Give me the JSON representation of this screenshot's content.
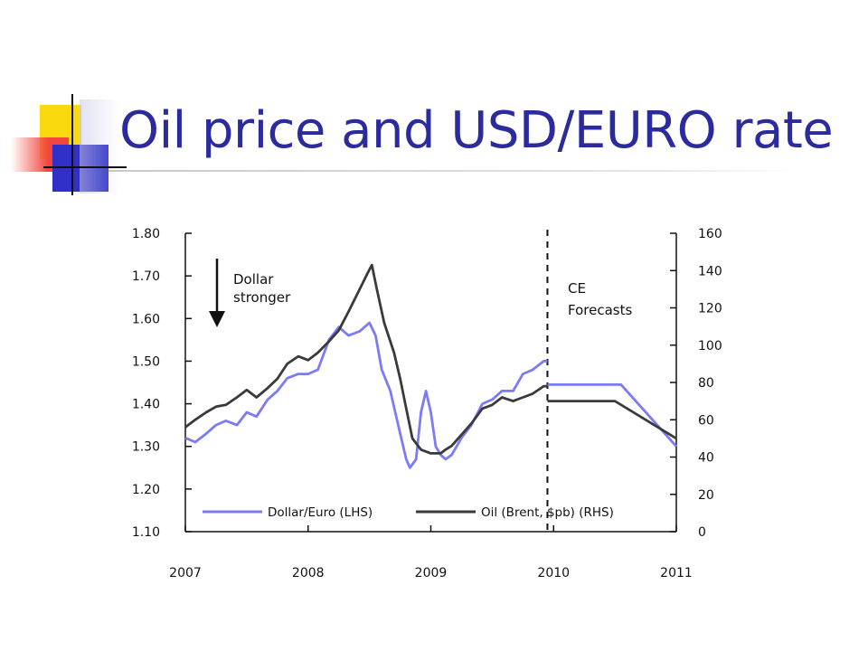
{
  "slide": {
    "title": "Oil price and USD/EURO rate"
  },
  "chart_data": {
    "type": "line",
    "title": "",
    "left_axis": {
      "ticks": [
        "1.80",
        "1.70",
        "1.60",
        "1.50",
        "1.40",
        "1.30",
        "1.20",
        "1.10"
      ],
      "ylim": [
        1.1,
        1.8
      ]
    },
    "right_axis": {
      "ticks": [
        "160",
        "140",
        "120",
        "100",
        "80",
        "60",
        "40",
        "20",
        "0"
      ],
      "ylim": [
        0,
        160
      ]
    },
    "x_axis": {
      "ticks": [
        "2007",
        "2008",
        "2009",
        "2010",
        "2011"
      ],
      "xlim": [
        2007,
        2011
      ]
    },
    "grid": false,
    "forecast_start": 2009.95,
    "annotations": {
      "dollar_stronger": [
        "Dollar",
        "stronger"
      ],
      "forecast": [
        "CE",
        "Forecasts"
      ]
    },
    "legend": {
      "placement": "bottom"
    },
    "series": [
      {
        "name": "Dollar/Euro (LHS)",
        "axis": "left",
        "color": "#7b7bf5",
        "points": [
          [
            2007.0,
            1.32
          ],
          [
            2007.08,
            1.31
          ],
          [
            2007.17,
            1.33
          ],
          [
            2007.25,
            1.35
          ],
          [
            2007.33,
            1.36
          ],
          [
            2007.42,
            1.35
          ],
          [
            2007.5,
            1.38
          ],
          [
            2007.58,
            1.37
          ],
          [
            2007.67,
            1.41
          ],
          [
            2007.75,
            1.43
          ],
          [
            2007.83,
            1.46
          ],
          [
            2007.92,
            1.47
          ],
          [
            2008.0,
            1.47
          ],
          [
            2008.08,
            1.48
          ],
          [
            2008.17,
            1.55
          ],
          [
            2008.25,
            1.58
          ],
          [
            2008.33,
            1.56
          ],
          [
            2008.42,
            1.57
          ],
          [
            2008.5,
            1.59
          ],
          [
            2008.55,
            1.56
          ],
          [
            2008.6,
            1.48
          ],
          [
            2008.67,
            1.43
          ],
          [
            2008.75,
            1.33
          ],
          [
            2008.8,
            1.27
          ],
          [
            2008.83,
            1.25
          ],
          [
            2008.88,
            1.27
          ],
          [
            2008.92,
            1.38
          ],
          [
            2008.96,
            1.43
          ],
          [
            2009.0,
            1.38
          ],
          [
            2009.04,
            1.3
          ],
          [
            2009.08,
            1.28
          ],
          [
            2009.12,
            1.27
          ],
          [
            2009.17,
            1.28
          ],
          [
            2009.25,
            1.32
          ],
          [
            2009.33,
            1.35
          ],
          [
            2009.42,
            1.4
          ],
          [
            2009.5,
            1.41
          ],
          [
            2009.58,
            1.43
          ],
          [
            2009.67,
            1.43
          ],
          [
            2009.75,
            1.47
          ],
          [
            2009.83,
            1.48
          ],
          [
            2009.92,
            1.5
          ],
          [
            2009.95,
            1.5
          ]
        ],
        "forecast": [
          [
            2009.95,
            1.445
          ],
          [
            2010.55,
            1.445
          ],
          [
            2011.0,
            1.3
          ]
        ]
      },
      {
        "name": "Oil (Brent, $pb) (RHS)",
        "axis": "right",
        "color": "#3a3a3a",
        "points": [
          [
            2007.0,
            56
          ],
          [
            2007.08,
            60
          ],
          [
            2007.17,
            64
          ],
          [
            2007.25,
            67
          ],
          [
            2007.33,
            68
          ],
          [
            2007.42,
            72
          ],
          [
            2007.5,
            76
          ],
          [
            2007.58,
            72
          ],
          [
            2007.67,
            77
          ],
          [
            2007.75,
            82
          ],
          [
            2007.83,
            90
          ],
          [
            2007.92,
            94
          ],
          [
            2008.0,
            92
          ],
          [
            2008.08,
            96
          ],
          [
            2008.17,
            102
          ],
          [
            2008.25,
            108
          ],
          [
            2008.33,
            118
          ],
          [
            2008.42,
            130
          ],
          [
            2008.48,
            138
          ],
          [
            2008.52,
            143
          ],
          [
            2008.56,
            130
          ],
          [
            2008.62,
            112
          ],
          [
            2008.7,
            96
          ],
          [
            2008.75,
            82
          ],
          [
            2008.8,
            66
          ],
          [
            2008.85,
            50
          ],
          [
            2008.92,
            44
          ],
          [
            2009.0,
            42
          ],
          [
            2009.08,
            42
          ],
          [
            2009.12,
            44
          ],
          [
            2009.17,
            46
          ],
          [
            2009.25,
            52
          ],
          [
            2009.33,
            58
          ],
          [
            2009.42,
            66
          ],
          [
            2009.5,
            68
          ],
          [
            2009.58,
            72
          ],
          [
            2009.67,
            70
          ],
          [
            2009.75,
            72
          ],
          [
            2009.83,
            74
          ],
          [
            2009.92,
            78
          ],
          [
            2009.95,
            78
          ]
        ],
        "forecast": [
          [
            2009.95,
            70
          ],
          [
            2010.5,
            70
          ],
          [
            2011.0,
            50
          ]
        ]
      }
    ]
  }
}
